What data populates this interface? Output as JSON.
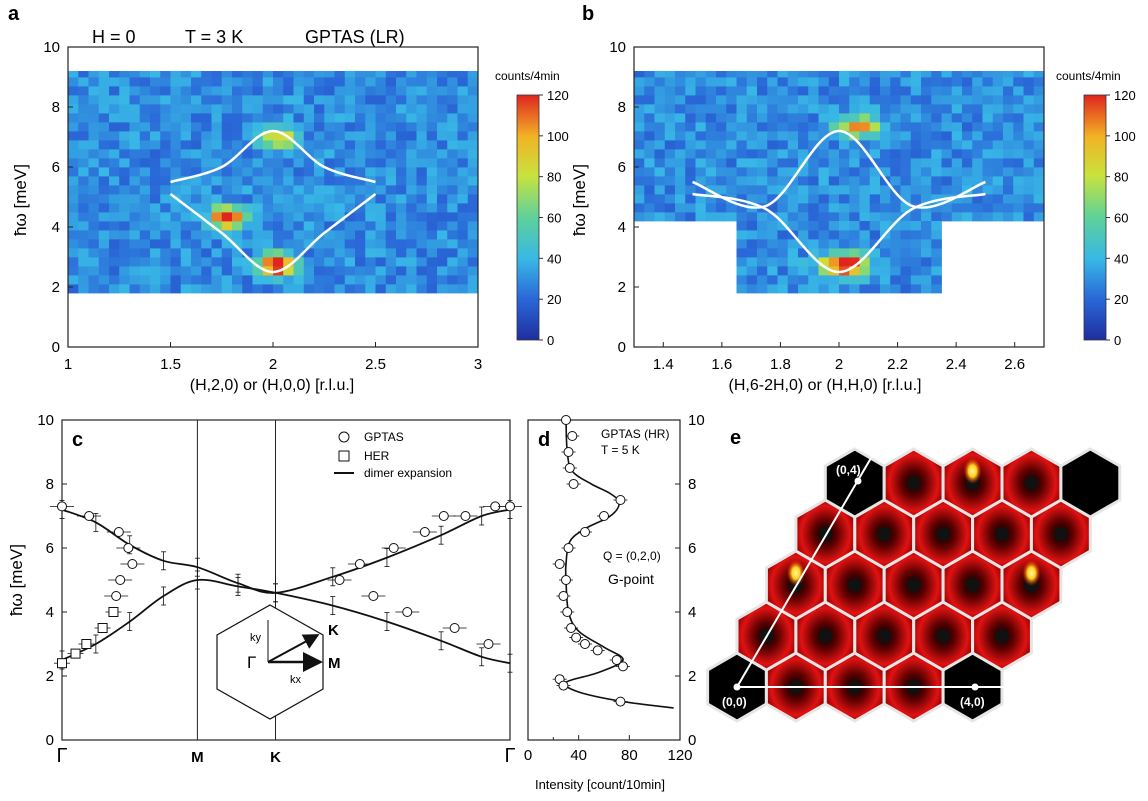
{
  "colorscale": {
    "unit": "counts/4min",
    "ticks": [
      "0",
      "20",
      "40",
      "60",
      "80",
      "100",
      "120"
    ],
    "stops": [
      "#1f2fa0",
      "#2a68d8",
      "#38b8e6",
      "#5ed19a",
      "#c8e23e",
      "#f2b325",
      "#e0251f"
    ]
  },
  "chart_data": [
    {
      "panel": "a",
      "type": "heatmap",
      "header": {
        "field": "H = 0",
        "temperature": "T = 3 K",
        "instrument": "GPTAS (LR)"
      },
      "xlabel": "(H,2,0) or (H,0,0) [r.l.u.]",
      "ylabel": "ħω [meV]",
      "xlim": [
        1,
        3
      ],
      "ylim": [
        0,
        10
      ],
      "xticks": [
        "1",
        "1.5",
        "2",
        "2.5",
        "3"
      ],
      "yticks": [
        "0",
        "2",
        "4",
        "6",
        "8",
        "10"
      ],
      "colorbar_label": "counts/4min",
      "colorbar_range": [
        0,
        120
      ],
      "data_region": {
        "x": [
          1.0,
          3.0
        ],
        "y": [
          1.8,
          9.2
        ]
      },
      "features": [
        {
          "x": 1.75,
          "y": 4.2,
          "counts": 105
        },
        {
          "x": 2.0,
          "y": 2.6,
          "counts": 120
        },
        {
          "x": 2.0,
          "y": 6.8,
          "counts": 70
        }
      ],
      "curves": [
        {
          "name": "upper",
          "x": [
            1.5,
            1.75,
            2.0,
            2.25,
            2.5
          ],
          "y": [
            5.5,
            6.0,
            7.2,
            6.0,
            5.5
          ]
        },
        {
          "name": "lower",
          "x": [
            1.5,
            1.75,
            2.0,
            2.25,
            2.5
          ],
          "y": [
            5.1,
            3.8,
            2.5,
            3.8,
            5.1
          ]
        }
      ]
    },
    {
      "panel": "b",
      "type": "heatmap",
      "xlabel": "(H,6-2H,0) or (H,H,0) [r.l.u.]",
      "ylabel": "ħω [meV]",
      "xlim": [
        1.3,
        2.7
      ],
      "ylim": [
        0,
        10
      ],
      "xticks": [
        "1.4",
        "1.6",
        "1.8",
        "2",
        "2.2",
        "2.4",
        "2.6"
      ],
      "yticks": [
        "0",
        "2",
        "4",
        "6",
        "8",
        "10"
      ],
      "colorbar_label": "counts/4min",
      "colorbar_range": [
        0,
        120
      ],
      "data_regions": [
        {
          "x": [
            1.3,
            2.7
          ],
          "y": [
            4.2,
            9.2
          ]
        },
        {
          "x": [
            1.65,
            2.35
          ],
          "y": [
            1.8,
            4.2
          ]
        }
      ],
      "features": [
        {
          "x": 2.0,
          "y": 2.6,
          "counts": 110
        },
        {
          "x": 2.05,
          "y": 7.2,
          "counts": 70
        }
      ],
      "curves": [
        {
          "name": "upper",
          "x": [
            1.5,
            1.75,
            2.0,
            2.25,
            2.5
          ],
          "y": [
            5.5,
            4.7,
            7.2,
            4.7,
            5.5
          ]
        },
        {
          "name": "lower",
          "x": [
            1.5,
            1.75,
            2.0,
            2.25,
            2.5
          ],
          "y": [
            5.1,
            4.6,
            2.5,
            4.6,
            5.1
          ]
        }
      ]
    },
    {
      "panel": "c",
      "type": "scatter",
      "ylabel": "ħω [meV]",
      "ylim": [
        0,
        10
      ],
      "yticks": [
        "0",
        "2",
        "4",
        "6",
        "8",
        "10"
      ],
      "xtick_labels": [
        "Γ",
        "M",
        "K",
        "Γ"
      ],
      "xtick_positions": [
        0,
        1,
        1.577,
        3.309
      ],
      "legend": [
        "GPTAS",
        "HER",
        "dimer expansion"
      ],
      "inset": {
        "labels": [
          "Γ",
          "K",
          "M",
          "kx",
          "ky"
        ]
      },
      "series": [
        {
          "name": "GPTAS",
          "x": [
            0,
            0.2,
            0.42,
            0.49,
            0.52,
            0.43,
            0.4,
            2.05,
            2.2,
            2.45,
            2.68,
            2.82,
            2.98,
            3.2,
            3.309,
            2.3,
            2.55,
            2.9,
            3.15
          ],
          "y": [
            7.3,
            7.0,
            6.5,
            6.0,
            5.5,
            5.0,
            4.5,
            5.0,
            5.5,
            6.0,
            6.5,
            7.0,
            7.0,
            7.3,
            7.3,
            4.5,
            4.0,
            3.5,
            3.0
          ]
        },
        {
          "name": "HER",
          "x": [
            0,
            0.1,
            0.18,
            0.3,
            0.38
          ],
          "y": [
            2.4,
            2.7,
            3.0,
            3.5,
            4.0
          ]
        }
      ],
      "curves": [
        {
          "name": "dimer expansion upper",
          "x": [
            0,
            0.25,
            0.5,
            0.75,
            1.0,
            1.3,
            1.577,
            2.0,
            2.4,
            2.8,
            3.1,
            3.309
          ],
          "y": [
            7.2,
            6.8,
            6.1,
            5.6,
            5.4,
            4.9,
            4.6,
            5.1,
            5.7,
            6.4,
            7.0,
            7.2
          ]
        },
        {
          "name": "dimer expansion lower",
          "x": [
            0,
            0.25,
            0.5,
            0.75,
            1.0,
            1.3,
            1.577,
            2.0,
            2.4,
            2.8,
            3.1,
            3.309
          ],
          "y": [
            2.5,
            3.0,
            3.7,
            4.5,
            5.0,
            4.8,
            4.6,
            4.2,
            3.7,
            3.1,
            2.6,
            2.4
          ]
        }
      ]
    },
    {
      "panel": "d",
      "type": "scatter",
      "instrument": "GPTAS (HR)",
      "temperature": "T = 5 K",
      "q_label": "Q = (0,2,0)",
      "point_label": "G-point",
      "xlabel": "Intensity [count/10min]",
      "xlim": [
        0,
        120
      ],
      "ylim": [
        0,
        10
      ],
      "xticks": [
        "0",
        "40",
        "80",
        "120"
      ],
      "minor_xtick": "20",
      "yticks": [
        "0",
        "2",
        "4",
        "6",
        "8",
        "10"
      ],
      "series": [
        {
          "name": "data",
          "x": [
            30,
            35,
            32,
            33,
            36,
            73,
            60,
            45,
            32,
            25,
            30,
            28,
            31,
            34,
            38,
            45,
            55,
            70,
            75,
            25,
            28,
            73
          ],
          "y": [
            10.0,
            9.5,
            9.0,
            8.5,
            8.0,
            7.5,
            7.0,
            6.5,
            6.0,
            5.5,
            5.0,
            4.5,
            4.0,
            3.5,
            3.2,
            3.0,
            2.8,
            2.5,
            2.3,
            1.9,
            1.7,
            1.2
          ]
        }
      ],
      "fit": {
        "x": [
          30,
          31,
          35,
          50,
          65,
          72,
          65,
          45,
          33,
          30,
          30,
          32,
          40,
          60,
          75,
          55,
          30,
          40,
          75,
          115
        ],
        "y": [
          10.0,
          9.0,
          8.4,
          8.0,
          7.7,
          7.4,
          7.0,
          6.6,
          6.2,
          5.5,
          5.0,
          4.0,
          3.4,
          2.9,
          2.5,
          2.1,
          1.8,
          1.5,
          1.2,
          1.0
        ]
      }
    },
    {
      "panel": "e",
      "type": "heatmap",
      "lattice_labels": [
        "(0,0)",
        "(4,0)",
        "(0,4)"
      ],
      "rows": [
        {
          "bright_spots": [],
          "black_cells": [
            0,
            4
          ]
        },
        {
          "bright_spots": [],
          "black_cells": []
        },
        {
          "bright_spots": [
            0,
            4
          ],
          "black_cells": []
        },
        {
          "bright_spots": [],
          "black_cells": []
        },
        {
          "bright_spots": [
            2
          ],
          "black_cells": [
            0,
            4
          ]
        }
      ]
    }
  ]
}
